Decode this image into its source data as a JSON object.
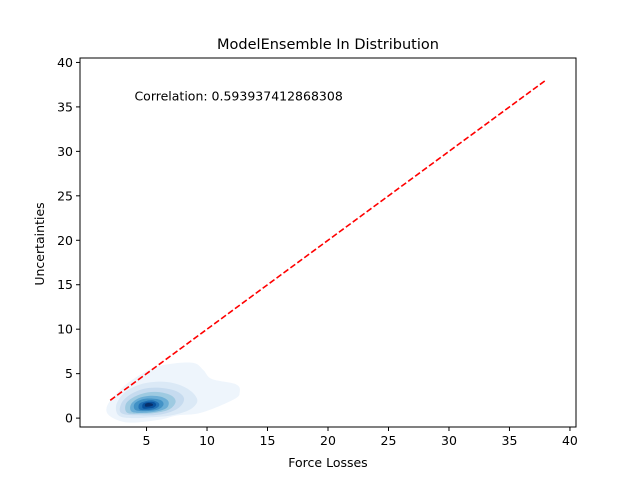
{
  "chart_data": {
    "type": "kde-density",
    "title": "ModelEnsemble In Distribution",
    "xlabel": "Force Losses",
    "ylabel": "Uncertainties",
    "xlim": [
      -0.5,
      40.5
    ],
    "ylim": [
      -1.0,
      40.5
    ],
    "xticks": [
      5,
      10,
      15,
      20,
      25,
      30,
      35,
      40
    ],
    "yticks": [
      0,
      5,
      10,
      15,
      20,
      25,
      30,
      35,
      40
    ],
    "annotation": "Correlation: 0.593937412868308",
    "annotation_pos": [
      4.0,
      36.3
    ],
    "reference_line": {
      "x": [
        2.0,
        38.0
      ],
      "y": [
        2.0,
        38.0
      ],
      "color": "#ff0000",
      "style": "dashed"
    },
    "density": {
      "colormap": "Blues",
      "peak": [
        5.2,
        1.5
      ],
      "levels": [
        {
          "rank": 1,
          "color": "#eef5fc",
          "poly": [
            [
              2.0,
              0.2
            ],
            [
              1.7,
              1.2
            ],
            [
              2.4,
              2.6
            ],
            [
              3.7,
              4.2
            ],
            [
              5.5,
              5.6
            ],
            [
              7.0,
              6.1
            ],
            [
              8.9,
              6.2
            ],
            [
              9.7,
              5.4
            ],
            [
              10.4,
              4.4
            ],
            [
              12.4,
              3.8
            ],
            [
              12.7,
              2.9
            ],
            [
              12.2,
              2.1
            ],
            [
              9.5,
              0.6
            ],
            [
              7.5,
              0.3
            ],
            [
              6.0,
              -0.2
            ],
            [
              3.5,
              -0.5
            ]
          ]
        },
        {
          "rank": 2,
          "color": "#dbe9f6",
          "poly": [
            [
              2.7,
              0.3
            ],
            [
              2.5,
              1.5
            ],
            [
              3.2,
              2.9
            ],
            [
              4.5,
              3.8
            ],
            [
              6.2,
              4.1
            ],
            [
              7.6,
              3.8
            ],
            [
              8.7,
              3.0
            ],
            [
              9.2,
              1.9
            ],
            [
              8.5,
              0.9
            ],
            [
              7.0,
              0.3
            ],
            [
              5.4,
              0.1
            ],
            [
              3.8,
              0.0
            ]
          ]
        },
        {
          "rank": 3,
          "color": "#c6dbef",
          "poly": [
            [
              3.0,
              0.5
            ],
            [
              2.9,
              1.6
            ],
            [
              3.6,
              2.6
            ],
            [
              4.8,
              3.3
            ],
            [
              6.2,
              3.4
            ],
            [
              7.5,
              3.0
            ],
            [
              8.1,
              2.2
            ],
            [
              7.7,
              1.2
            ],
            [
              6.5,
              0.5
            ],
            [
              5.0,
              0.3
            ]
          ]
        },
        {
          "rank": 4,
          "color": "#9ecae1",
          "poly": [
            [
              3.4,
              0.6
            ],
            [
              3.3,
              1.6
            ],
            [
              4.0,
              2.4
            ],
            [
              5.1,
              2.9
            ],
            [
              6.2,
              2.9
            ],
            [
              7.1,
              2.5
            ],
            [
              7.4,
              1.8
            ],
            [
              6.9,
              1.0
            ],
            [
              5.8,
              0.6
            ],
            [
              4.6,
              0.5
            ]
          ]
        },
        {
          "rank": 5,
          "color": "#6baed6",
          "poly": [
            [
              3.8,
              0.7
            ],
            [
              3.7,
              1.5
            ],
            [
              4.3,
              2.2
            ],
            [
              5.2,
              2.5
            ],
            [
              6.2,
              2.4
            ],
            [
              6.8,
              1.9
            ],
            [
              6.7,
              1.2
            ],
            [
              6.0,
              0.8
            ],
            [
              4.9,
              0.6
            ]
          ]
        },
        {
          "rank": 6,
          "color": "#4292c6",
          "poly": [
            [
              4.1,
              0.9
            ],
            [
              4.0,
              1.6
            ],
            [
              4.6,
              2.1
            ],
            [
              5.4,
              2.2
            ],
            [
              6.2,
              2.0
            ],
            [
              6.4,
              1.5
            ],
            [
              6.0,
              1.0
            ],
            [
              5.1,
              0.8
            ]
          ]
        },
        {
          "rank": 7,
          "color": "#2171b5",
          "poly": [
            [
              4.4,
              1.0
            ],
            [
              4.4,
              1.6
            ],
            [
              4.9,
              1.9
            ],
            [
              5.5,
              2.0
            ],
            [
              6.0,
              1.7
            ],
            [
              6.0,
              1.3
            ],
            [
              5.6,
              1.0
            ],
            [
              5.0,
              0.9
            ]
          ]
        },
        {
          "rank": 8,
          "color": "#08519c",
          "poly": [
            [
              4.7,
              1.1
            ],
            [
              4.7,
              1.6
            ],
            [
              5.1,
              1.8
            ],
            [
              5.6,
              1.8
            ],
            [
              5.8,
              1.5
            ],
            [
              5.6,
              1.2
            ],
            [
              5.2,
              1.1
            ]
          ]
        },
        {
          "rank": 9,
          "color": "#08306b",
          "poly": [
            [
              4.9,
              1.3
            ],
            [
              4.9,
              1.6
            ],
            [
              5.2,
              1.7
            ],
            [
              5.5,
              1.6
            ],
            [
              5.5,
              1.4
            ],
            [
              5.2,
              1.3
            ]
          ]
        }
      ]
    }
  }
}
